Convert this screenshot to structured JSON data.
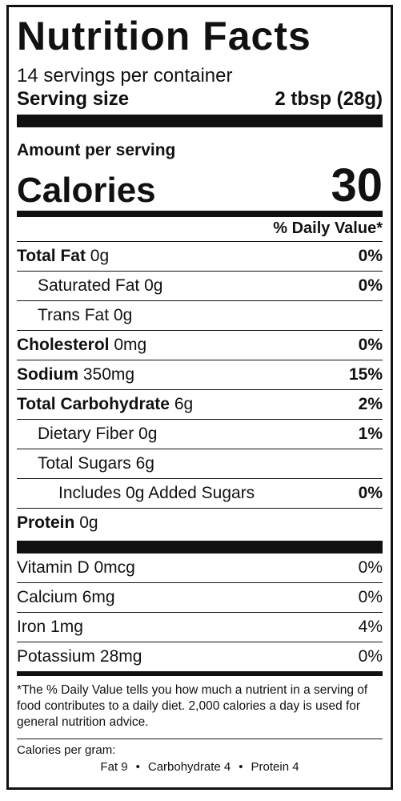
{
  "title": "Nutrition Facts",
  "servings_per_container": "14 servings per container",
  "serving_size_label": "Serving size",
  "serving_size_value": "2 tbsp (28g)",
  "amount_per_serving": "Amount per serving",
  "calories_label": "Calories",
  "calories_value": "30",
  "daily_value_header": "% Daily Value*",
  "nutrients": [
    {
      "name": "Total Fat",
      "amount": "0g",
      "dv": "0%"
    },
    {
      "name": "Saturated Fat",
      "amount": "0g",
      "dv": "0%"
    },
    {
      "name": "Trans Fat",
      "amount": "0g",
      "dv": ""
    },
    {
      "name": "Cholesterol",
      "amount": "0mg",
      "dv": "0%"
    },
    {
      "name": "Sodium",
      "amount": "350mg",
      "dv": "15%"
    },
    {
      "name": "Total Carbohydrate",
      "amount": "6g",
      "dv": "2%"
    },
    {
      "name": "Dietary Fiber",
      "amount": "0g",
      "dv": "1%"
    },
    {
      "name": "Total Sugars",
      "amount": "6g",
      "dv": ""
    },
    {
      "name": "Includes 0g Added Sugars",
      "amount": "",
      "dv": "0%"
    },
    {
      "name": "Protein",
      "amount": "0g",
      "dv": ""
    }
  ],
  "vitamins": [
    {
      "name": "Vitamin D",
      "amount": "0mcg",
      "dv": "0%"
    },
    {
      "name": "Calcium",
      "amount": "6mg",
      "dv": "0%"
    },
    {
      "name": "Iron",
      "amount": "1mg",
      "dv": "4%"
    },
    {
      "name": "Potassium",
      "amount": "28mg",
      "dv": "0%"
    }
  ],
  "footnote": "*The % Daily Value tells you how much a nutrient in a serving of food contributes to a daily diet. 2,000 calories a day is used for general nutrition advice.",
  "calories_per_gram_label": "Calories per gram:",
  "calories_per_gram": {
    "fat": "Fat 9",
    "carbohydrate": "Carbohydrate 4",
    "protein": "Protein 4",
    "separator": "•"
  }
}
